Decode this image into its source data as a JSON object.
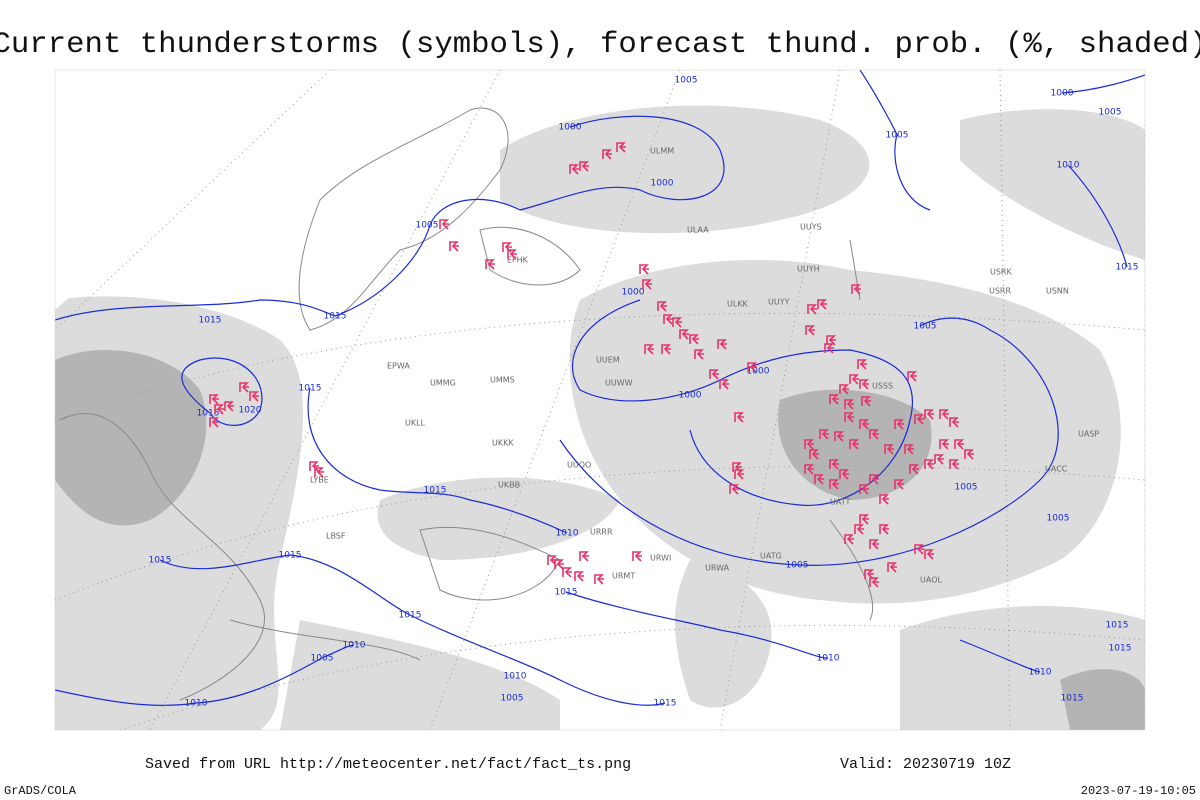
{
  "title": "Current thunderstorms (symbols), forecast thund. prob. (%, shaded)",
  "footer": {
    "source": "Saved from URL http://meteocenter.net/fact/fact_ts.png",
    "valid": "Valid: 20230719 10Z",
    "credit": "GrADS/COLA",
    "timestamp": "2023-07-19-10:05"
  },
  "isobar_labels": [
    "1005",
    "1000",
    "1005",
    "1000",
    "1005",
    "1000",
    "1010",
    "1005",
    "1015",
    "1000",
    "1015",
    "1015",
    "1005",
    "1000",
    "1015",
    "1020",
    "1015",
    "1000",
    "1015",
    "1005",
    "1010",
    "1005",
    "1015",
    "1015",
    "1005",
    "1015",
    "1015",
    "1010",
    "1010",
    "1005",
    "1010",
    "1005",
    "1015",
    "1010",
    "1015",
    "1015",
    "1010",
    "1015"
  ],
  "stations": [
    "ULMM",
    "ULAA",
    "UUYY",
    "ULKK",
    "UUEM",
    "UUWW",
    "UMMS",
    "UKBB",
    "UKKK",
    "UMMG",
    "UKLL",
    "UUOO",
    "URRR",
    "URMT",
    "URWI",
    "URWA",
    "UATG",
    "UACC",
    "UASP",
    "UAOL",
    "UATT",
    "USSS",
    "UUYH",
    "UUYS",
    "USRR",
    "USNN",
    "USRK",
    "EFHK",
    "EPWA",
    "LYBE",
    "LBSF"
  ]
}
